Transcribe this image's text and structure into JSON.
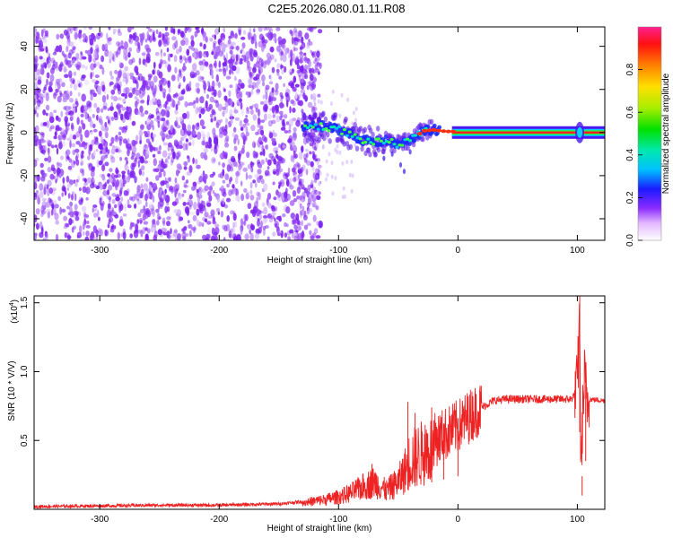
{
  "title": "C2E5.2026.080.01.11.R08",
  "colors": {
    "snr_line": "#ee2222",
    "scatter": "#7a1ff0",
    "frame": "#000000"
  },
  "chart_data": [
    {
      "type": "heatmap",
      "name": "spectrogram",
      "xlabel": "Height of straight line (km)",
      "ylabel": "Frequency (Hz)",
      "xlim": [
        -355,
        123
      ],
      "ylim": [
        -50,
        49
      ],
      "xticks": [
        -300,
        -200,
        -100,
        0,
        100
      ],
      "xtick_labels": [
        "-300",
        "-200",
        "-100",
        "0",
        "100"
      ],
      "yticks": [
        -40,
        -20,
        0,
        20,
        40
      ],
      "ytick_labels": [
        "-40",
        "-20",
        "0",
        "20",
        "40"
      ],
      "grid": false,
      "noise_region_x": [
        -355,
        -125
      ],
      "signal_ridge": [
        [
          -130,
          2.5
        ],
        [
          -115,
          3.0
        ],
        [
          -100,
          1.5
        ],
        [
          -90,
          -1.0
        ],
        [
          -80,
          -3.5
        ],
        [
          -70,
          -4.5
        ],
        [
          -60,
          -4.0
        ],
        [
          -50,
          -5.5
        ],
        [
          -42,
          -4.5
        ],
        [
          -35,
          -1.5
        ],
        [
          -28,
          0.8
        ],
        [
          -20,
          1.2
        ],
        [
          -10,
          0.5
        ],
        [
          0,
          0.5
        ],
        [
          20,
          0
        ],
        [
          123,
          0
        ]
      ],
      "colorbar": {
        "label": "Normalized spectral amplitude",
        "range": [
          0,
          1
        ],
        "ticks": [
          0.0,
          0.2,
          0.4,
          0.6,
          0.8
        ],
        "tick_labels": [
          "0.0",
          "0.2",
          "0.4",
          "0.6",
          "0.8"
        ]
      }
    },
    {
      "type": "line",
      "name": "snr",
      "xlabel": "Height of straight line (km)",
      "ylabel": "SNR (10 * V/V)",
      "y_multiplier_label": "(x10",
      "y_multiplier_exp": "4",
      "y_multiplier_close": ")",
      "xlim": [
        -355,
        123
      ],
      "ylim": [
        0,
        1.55
      ],
      "xticks": [
        -300,
        -200,
        -100,
        0,
        100
      ],
      "xtick_labels": [
        "-300",
        "-200",
        "-100",
        "0",
        "100"
      ],
      "yticks": [
        0.5,
        1.0,
        1.5
      ],
      "ytick_labels": [
        "0.5",
        "1.0",
        "1.5"
      ],
      "grid": false,
      "envelope": [
        [
          -355,
          0.02
        ],
        [
          -300,
          0.025
        ],
        [
          -250,
          0.03
        ],
        [
          -200,
          0.03
        ],
        [
          -150,
          0.04
        ],
        [
          -125,
          0.06
        ],
        [
          -110,
          0.08
        ],
        [
          -100,
          0.1
        ],
        [
          -90,
          0.13
        ],
        [
          -80,
          0.18
        ],
        [
          -70,
          0.22
        ],
        [
          -60,
          0.15
        ],
        [
          -50,
          0.22
        ],
        [
          -45,
          0.3
        ],
        [
          -40,
          0.4
        ],
        [
          -30,
          0.45
        ],
        [
          -20,
          0.5
        ],
        [
          -10,
          0.55
        ],
        [
          0,
          0.6
        ],
        [
          10,
          0.68
        ],
        [
          20,
          0.74
        ],
        [
          30,
          0.79
        ],
        [
          40,
          0.8
        ],
        [
          60,
          0.8
        ],
        [
          80,
          0.8
        ],
        [
          95,
          0.8
        ],
        [
          98,
          0.84
        ],
        [
          100,
          0.9
        ],
        [
          102,
          1.4
        ],
        [
          103,
          0.2
        ],
        [
          104,
          0.6
        ],
        [
          106,
          0.95
        ],
        [
          108,
          0.8
        ],
        [
          123,
          0.79
        ]
      ],
      "peaks": [
        [
          -72,
          0.33
        ],
        [
          -42,
          0.78
        ],
        [
          -36,
          0.7
        ],
        [
          -22,
          0.74
        ],
        [
          -12,
          0.62
        ],
        [
          0,
          0.66
        ],
        [
          102,
          1.55
        ],
        [
          104,
          0.1
        ],
        [
          107,
          1.05
        ]
      ]
    }
  ]
}
